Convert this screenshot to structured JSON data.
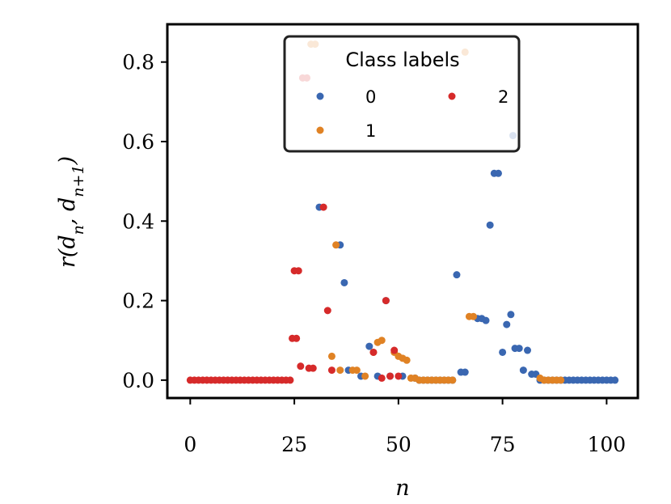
{
  "chart_data": {
    "type": "scatter",
    "title": "",
    "xlabel": "n",
    "ylabel": "r(d_n, d_{n+1})",
    "xlim": [
      -5.5,
      107.5
    ],
    "ylim": [
      -0.045,
      0.895
    ],
    "xticks": [
      0,
      25,
      50,
      75,
      100
    ],
    "yticks": [
      0.0,
      0.2,
      0.4,
      0.6,
      0.8
    ],
    "xtick_labels": [
      "0",
      "25",
      "50",
      "75",
      "100"
    ],
    "ytick_labels": [
      "0.0",
      "0.2",
      "0.4",
      "0.6",
      "0.8"
    ],
    "grid": false,
    "legend": {
      "title": "Class labels",
      "placement": "top-center",
      "columns": 2,
      "entries": [
        "0",
        "1",
        "2"
      ]
    },
    "colors": {
      "0": "#3a67b1",
      "1": "#e08224",
      "2": "#d62a2a"
    },
    "series": [
      {
        "name": "0",
        "points": [
          [
            31,
            0.435
          ],
          [
            36,
            0.34
          ],
          [
            37,
            0.245
          ],
          [
            38,
            0.025
          ],
          [
            41,
            0.01
          ],
          [
            43,
            0.085
          ],
          [
            45,
            0.01
          ],
          [
            47,
            0.2
          ],
          [
            48,
            0.01
          ],
          [
            51,
            0.01
          ],
          [
            54,
            0.005
          ],
          [
            55,
            0.0
          ],
          [
            56,
            0.0
          ],
          [
            57,
            0.0
          ],
          [
            58,
            0.0
          ],
          [
            59,
            0.0
          ],
          [
            60,
            0.0
          ],
          [
            61,
            0.0
          ],
          [
            62,
            0.0
          ],
          [
            63,
            0.0
          ],
          [
            64,
            0.265
          ],
          [
            65,
            0.02
          ],
          [
            66,
            0.02
          ],
          [
            69,
            0.155
          ],
          [
            70,
            0.155
          ],
          [
            71,
            0.15
          ],
          [
            72,
            0.39
          ],
          [
            73,
            0.52
          ],
          [
            74,
            0.52
          ],
          [
            75,
            0.07
          ],
          [
            76,
            0.14
          ],
          [
            77,
            0.165
          ],
          [
            77.5,
            0.615
          ],
          [
            78,
            0.08
          ],
          [
            79,
            0.08
          ],
          [
            80,
            0.025
          ],
          [
            81,
            0.075
          ],
          [
            82,
            0.015
          ],
          [
            83,
            0.015
          ],
          [
            84,
            0.0
          ],
          [
            85,
            0.0
          ],
          [
            86,
            0.0
          ],
          [
            87,
            0.0
          ],
          [
            88,
            0.0
          ],
          [
            89,
            0.0
          ],
          [
            90,
            0.0
          ],
          [
            91,
            0.0
          ],
          [
            92,
            0.0
          ],
          [
            93,
            0.0
          ],
          [
            94,
            0.0
          ],
          [
            95,
            0.0
          ],
          [
            96,
            0.0
          ],
          [
            97,
            0.0
          ],
          [
            98,
            0.0
          ],
          [
            99,
            0.0
          ],
          [
            100,
            0.0
          ],
          [
            101,
            0.0
          ],
          [
            102,
            0.0
          ]
        ]
      },
      {
        "name": "1",
        "points": [
          [
            29,
            0.845
          ],
          [
            30,
            0.845
          ],
          [
            34,
            0.06
          ],
          [
            35,
            0.34
          ],
          [
            36,
            0.025
          ],
          [
            39,
            0.025
          ],
          [
            40,
            0.025
          ],
          [
            42,
            0.01
          ],
          [
            44,
            0.07
          ],
          [
            45,
            0.095
          ],
          [
            46,
            0.1
          ],
          [
            49,
            0.07
          ],
          [
            50,
            0.06
          ],
          [
            51,
            0.055
          ],
          [
            52,
            0.05
          ],
          [
            53,
            0.005
          ],
          [
            54,
            0.005
          ],
          [
            55,
            0.0
          ],
          [
            56,
            0.0
          ],
          [
            57,
            0.0
          ],
          [
            58,
            0.0
          ],
          [
            59,
            0.0
          ],
          [
            60,
            0.0
          ],
          [
            61,
            0.0
          ],
          [
            62,
            0.0
          ],
          [
            63,
            0.0
          ],
          [
            66,
            0.825
          ],
          [
            67,
            0.16
          ],
          [
            68,
            0.16
          ],
          [
            84,
            0.005
          ],
          [
            85,
            0.0
          ],
          [
            86,
            0.0
          ],
          [
            87,
            0.0
          ],
          [
            88,
            0.0
          ],
          [
            89,
            0.0
          ]
        ]
      },
      {
        "name": "2",
        "points": [
          [
            0,
            0.0
          ],
          [
            1,
            0.0
          ],
          [
            2,
            0.0
          ],
          [
            3,
            0.0
          ],
          [
            4,
            0.0
          ],
          [
            5,
            0.0
          ],
          [
            6,
            0.0
          ],
          [
            7,
            0.0
          ],
          [
            8,
            0.0
          ],
          [
            9,
            0.0
          ],
          [
            10,
            0.0
          ],
          [
            11,
            0.0
          ],
          [
            12,
            0.0
          ],
          [
            13,
            0.0
          ],
          [
            14,
            0.0
          ],
          [
            15,
            0.0
          ],
          [
            16,
            0.0
          ],
          [
            17,
            0.0
          ],
          [
            18,
            0.0
          ],
          [
            19,
            0.0
          ],
          [
            20,
            0.0
          ],
          [
            21,
            0.0
          ],
          [
            22,
            0.0
          ],
          [
            23,
            0.0
          ],
          [
            24,
            0.0
          ],
          [
            24.5,
            0.105
          ],
          [
            25.5,
            0.105
          ],
          [
            25,
            0.275
          ],
          [
            26,
            0.275
          ],
          [
            26.5,
            0.035
          ],
          [
            27,
            0.76
          ],
          [
            28,
            0.76
          ],
          [
            28.5,
            0.03
          ],
          [
            29.5,
            0.03
          ],
          [
            32,
            0.435
          ],
          [
            33,
            0.175
          ],
          [
            34,
            0.025
          ],
          [
            44,
            0.07
          ],
          [
            46,
            0.005
          ],
          [
            47,
            0.2
          ],
          [
            48,
            0.01
          ],
          [
            49,
            0.075
          ],
          [
            50,
            0.01
          ]
        ]
      }
    ]
  }
}
